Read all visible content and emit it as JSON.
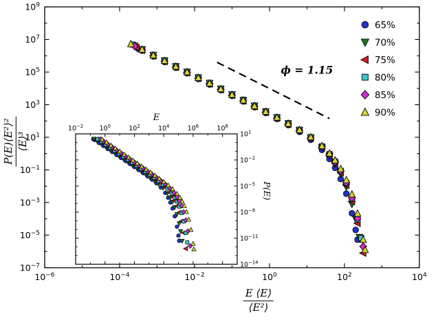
{
  "chart_data": {
    "type": "scatter",
    "scale": "log-log",
    "main": {
      "xlabel_numerator": "E ⟨E⟩",
      "xlabel_denominator": "⟨E²⟩",
      "ylabel_numerator": "P(E)⟨E²⟩²",
      "ylabel_denominator": "⟨E⟩³",
      "x_axis": {
        "log10_min": -6,
        "log10_max": 4,
        "labeled_exponents": [
          -6,
          -4,
          -2,
          0,
          2,
          4
        ]
      },
      "y_axis": {
        "log10_min": -7,
        "log10_max": 9,
        "labeled_exponents": [
          -7,
          -5,
          -3,
          -1,
          1,
          3,
          5,
          7,
          9
        ]
      },
      "guide_line": {
        "style": "dashed",
        "log10_x1": -1.4,
        "log10_y1": 5.6,
        "log10_x2": 1.6,
        "log10_y2": 2.15
      },
      "annotation": {
        "text": "ϕ = 1.15",
        "log10_x": 0.3,
        "log10_y": 4.9
      }
    },
    "inset": {
      "xlabel": "E",
      "ylabel": "P(E)",
      "x_axis": {
        "log10_min": -2,
        "log10_max": 9,
        "labeled_exponents": [
          -2,
          0,
          2,
          4,
          6,
          8
        ]
      },
      "y_axis": {
        "log10_min": -14,
        "log10_max": 1,
        "labeled_exponents": [
          1,
          -2,
          -5,
          -8,
          -11,
          -14
        ]
      }
    },
    "legend_position": "top-right",
    "series": [
      {
        "label": "65%",
        "marker": "circle",
        "color": "#2233cc",
        "inset_shift": {
          "dlog10_x": 2.7,
          "dlog10_y": -6.02
        },
        "points_log10": [
          [
            -3.5,
            6.42
          ],
          [
            -3.4,
            6.31
          ],
          [
            -3.1,
            5.96
          ],
          [
            -2.8,
            5.62
          ],
          [
            -2.5,
            5.27
          ],
          [
            -2.2,
            4.93
          ],
          [
            -1.9,
            4.58
          ],
          [
            -1.6,
            4.24
          ],
          [
            -1.3,
            3.89
          ],
          [
            -1.0,
            3.55
          ],
          [
            -0.7,
            3.2
          ],
          [
            -0.4,
            2.85
          ],
          [
            -0.1,
            2.49
          ],
          [
            0.2,
            2.13
          ],
          [
            0.5,
            1.75
          ],
          [
            0.8,
            1.34
          ],
          [
            1.1,
            0.85
          ],
          [
            1.4,
            0.23
          ],
          [
            1.6,
            -0.33
          ],
          [
            1.75,
            -0.87
          ],
          [
            1.9,
            -1.56
          ],
          [
            2.05,
            -2.46
          ],
          [
            2.2,
            -3.66
          ],
          [
            2.3,
            -4.68
          ],
          [
            2.35,
            -5.28
          ]
        ]
      },
      {
        "label": "70%",
        "marker": "triangle-down",
        "color": "#1e7a1e",
        "inset_shift": {
          "dlog10_x": 2.85,
          "dlog10_y": -6.2
        },
        "points_log10": [
          [
            -3.6,
            6.62
          ],
          [
            -3.4,
            6.39
          ],
          [
            -3.1,
            6.04
          ],
          [
            -2.8,
            5.7
          ],
          [
            -2.5,
            5.35
          ],
          [
            -2.2,
            5.01
          ],
          [
            -1.9,
            4.66
          ],
          [
            -1.6,
            4.32
          ],
          [
            -1.3,
            3.97
          ],
          [
            -1.0,
            3.62
          ],
          [
            -0.7,
            3.28
          ],
          [
            -0.4,
            2.93
          ],
          [
            -0.1,
            2.57
          ],
          [
            0.2,
            2.21
          ],
          [
            0.5,
            1.84
          ],
          [
            0.8,
            1.43
          ],
          [
            1.1,
            0.97
          ],
          [
            1.4,
            0.38
          ],
          [
            1.6,
            -0.13
          ],
          [
            1.75,
            -0.62
          ],
          [
            1.9,
            -1.24
          ],
          [
            2.05,
            -2.04
          ],
          [
            2.2,
            -3.1
          ],
          [
            2.3,
            -4.01
          ],
          [
            2.4,
            -5.12
          ]
        ]
      },
      {
        "label": "75%",
        "marker": "triangle-left",
        "color": "#d81e1e",
        "inset_shift": {
          "dlog10_x": 3.0,
          "dlog10_y": -6.1
        },
        "points_log10": [
          [
            -3.55,
            6.51
          ],
          [
            -3.4,
            6.34
          ],
          [
            -3.1,
            5.99
          ],
          [
            -2.8,
            5.65
          ],
          [
            -2.5,
            5.3
          ],
          [
            -2.2,
            4.96
          ],
          [
            -1.9,
            4.61
          ],
          [
            -1.6,
            4.27
          ],
          [
            -1.3,
            3.92
          ],
          [
            -1.0,
            3.57
          ],
          [
            -0.7,
            3.23
          ],
          [
            -0.4,
            2.88
          ],
          [
            -0.1,
            2.53
          ],
          [
            0.2,
            2.17
          ],
          [
            0.5,
            1.79
          ],
          [
            0.8,
            1.39
          ],
          [
            1.1,
            0.94
          ],
          [
            1.4,
            0.37
          ],
          [
            1.6,
            -0.13
          ],
          [
            1.75,
            -0.59
          ],
          [
            1.9,
            -1.18
          ],
          [
            2.05,
            -1.94
          ],
          [
            2.2,
            -2.94
          ],
          [
            2.35,
            -4.28
          ],
          [
            2.5,
            -6.1
          ]
        ]
      },
      {
        "label": "80%",
        "marker": "square",
        "color": "#3ec8c8",
        "inset_shift": {
          "dlog10_x": 3.15,
          "dlog10_y": -6.3
        },
        "points_log10": [
          [
            -3.65,
            6.69
          ],
          [
            -3.4,
            6.41
          ],
          [
            -3.1,
            6.06
          ],
          [
            -2.8,
            5.72
          ],
          [
            -2.5,
            5.37
          ],
          [
            -2.2,
            5.03
          ],
          [
            -1.9,
            4.68
          ],
          [
            -1.6,
            4.34
          ],
          [
            -1.3,
            3.99
          ],
          [
            -1.0,
            3.64
          ],
          [
            -0.7,
            3.3
          ],
          [
            -0.4,
            2.95
          ],
          [
            -0.1,
            2.6
          ],
          [
            0.2,
            2.24
          ],
          [
            0.5,
            1.87
          ],
          [
            0.8,
            1.47
          ],
          [
            1.1,
            1.01
          ],
          [
            1.4,
            0.45
          ],
          [
            1.6,
            -0.03
          ],
          [
            1.75,
            -0.49
          ],
          [
            1.9,
            -1.06
          ],
          [
            2.05,
            -1.8
          ],
          [
            2.2,
            -2.77
          ],
          [
            2.35,
            -4.07
          ],
          [
            2.45,
            -5.18
          ]
        ]
      },
      {
        "label": "85%",
        "marker": "diamond",
        "color": "#cf2fcf",
        "inset_shift": {
          "dlog10_x": 3.3,
          "dlog10_y": -6.2
        },
        "points_log10": [
          [
            -3.6,
            6.59
          ],
          [
            -3.4,
            6.36
          ],
          [
            -3.1,
            6.01
          ],
          [
            -2.8,
            5.67
          ],
          [
            -2.5,
            5.32
          ],
          [
            -2.2,
            4.98
          ],
          [
            -1.9,
            4.63
          ],
          [
            -1.6,
            4.29
          ],
          [
            -1.3,
            3.94
          ],
          [
            -1.0,
            3.59
          ],
          [
            -0.7,
            3.25
          ],
          [
            -0.4,
            2.9
          ],
          [
            -0.1,
            2.55
          ],
          [
            0.2,
            2.18
          ],
          [
            0.5,
            1.82
          ],
          [
            0.8,
            1.42
          ],
          [
            1.1,
            0.97
          ],
          [
            1.4,
            0.42
          ],
          [
            1.6,
            -0.06
          ],
          [
            1.75,
            -0.51
          ],
          [
            1.9,
            -1.06
          ],
          [
            2.05,
            -1.78
          ],
          [
            2.2,
            -2.73
          ],
          [
            2.35,
            -3.99
          ],
          [
            2.5,
            -5.7
          ]
        ]
      },
      {
        "label": "90%",
        "marker": "triangle-up",
        "color": "#d6d632",
        "inset_shift": {
          "dlog10_x": 3.5,
          "dlog10_y": -6.35
        },
        "points_log10": [
          [
            -3.7,
            6.72
          ],
          [
            -3.4,
            6.38
          ],
          [
            -3.1,
            6.03
          ],
          [
            -2.8,
            5.69
          ],
          [
            -2.5,
            5.34
          ],
          [
            -2.2,
            5.0
          ],
          [
            -1.9,
            4.65
          ],
          [
            -1.6,
            4.31
          ],
          [
            -1.3,
            3.96
          ],
          [
            -1.0,
            3.61
          ],
          [
            -0.7,
            3.27
          ],
          [
            -0.4,
            2.92
          ],
          [
            -0.1,
            2.57
          ],
          [
            0.2,
            2.21
          ],
          [
            0.5,
            1.84
          ],
          [
            0.8,
            1.45
          ],
          [
            1.1,
            1.01
          ],
          [
            1.4,
            0.47
          ],
          [
            1.6,
            0.01
          ],
          [
            1.75,
            -0.41
          ],
          [
            1.9,
            -0.94
          ],
          [
            2.05,
            -1.62
          ],
          [
            2.2,
            -2.5
          ],
          [
            2.35,
            -3.68
          ],
          [
            2.5,
            -5.28
          ],
          [
            2.55,
            -5.91
          ]
        ]
      }
    ]
  }
}
